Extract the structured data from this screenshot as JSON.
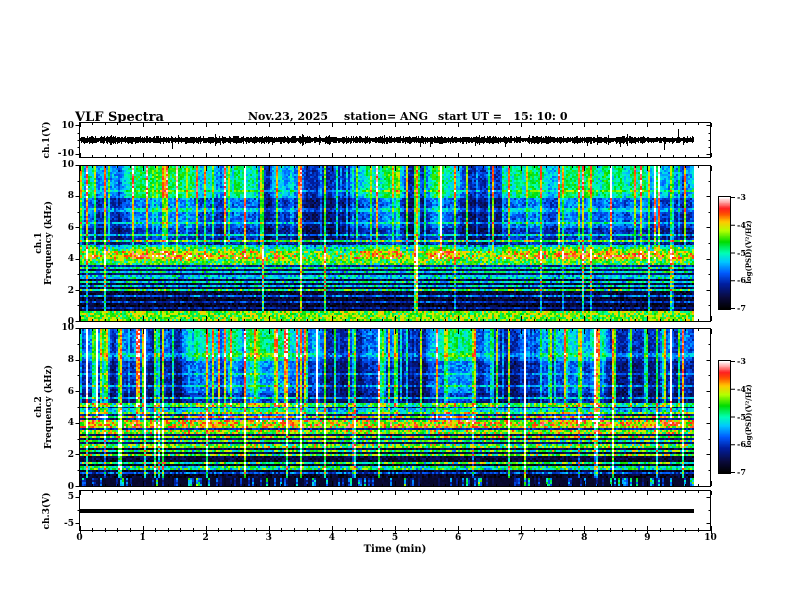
{
  "header": {
    "title": "VLF Spectra",
    "date": "Nov.23, 2025",
    "station": "station= ANG",
    "start_ut": "start UT =   15: 10: 0"
  },
  "chart_data": {
    "type": "heatmap",
    "title": "VLF Spectra",
    "date": "Nov.23, 2025",
    "station": "ANG",
    "start_ut": "15: 10: 0",
    "x_axis": {
      "label": "Time (min)",
      "range": [
        0,
        10
      ],
      "ticks": [
        "0",
        "1",
        "2",
        "3",
        "4",
        "5",
        "6",
        "7",
        "8",
        "9",
        "10"
      ],
      "minor_step_min": 0.2,
      "data_end_min": 9.73
    },
    "panels": [
      {
        "id": "ch1-voltage",
        "type": "waveform",
        "ylabel": "ch.1(V)",
        "yrange": [
          -12.5,
          12.5
        ],
        "ytick_values": [
          10,
          -10
        ],
        "ytick_labels": [
          "10",
          "-10"
        ],
        "minor_ytick_values": [
          5,
          0,
          -5
        ],
        "description": "continuous noise band centered at 0 V, ~±2 V, with sporadic impulse spikes",
        "spikes_min": [
          [
            1.47,
            -6.5
          ],
          [
            3.05,
            -3.5
          ],
          [
            5.4,
            -5.0
          ],
          [
            7.15,
            -3.0
          ],
          [
            9.27,
            -7.0
          ],
          [
            9.49,
            8.0
          ]
        ]
      },
      {
        "id": "ch1-spectrogram",
        "type": "spectrogram",
        "ylabel_lines": [
          "ch.1",
          "Frequency (kHz)"
        ],
        "yrange": [
          0,
          10
        ],
        "ytick_values": [
          10,
          8,
          6,
          4,
          2,
          0
        ],
        "ytick_labels": [
          "10",
          "8",
          "6",
          "4",
          "2",
          "0"
        ],
        "minor_ytick_values": [
          9,
          7,
          5,
          3,
          1
        ],
        "seed": 20250,
        "hot_streak_prob": 0.004,
        "bottom_band": "solid",
        "line_boost": 1.0,
        "bands": [
          {
            "f": [
              0,
              0.55
            ],
            "level": 0.56
          },
          {
            "f": [
              0.55,
              1.6
            ],
            "level": 0.05
          },
          {
            "f": [
              1.6,
              2.6
            ],
            "level": 0.07
          },
          {
            "f": [
              2.6,
              3.3
            ],
            "level": 0.12
          },
          {
            "f": [
              3.3,
              4.6
            ],
            "level": 0.2
          },
          {
            "f": [
              4.6,
              6.0
            ],
            "level": 0.17
          },
          {
            "f": [
              6.0,
              8.0
            ],
            "level": 0.24
          },
          {
            "f": [
              8.0,
              10.01
            ],
            "level": 0.38
          }
        ],
        "lines_khz": [
          [
            0.8,
            0.18
          ],
          [
            1.2,
            0.22
          ],
          [
            1.6,
            0.3
          ],
          [
            1.95,
            0.55
          ],
          [
            2.2,
            0.4
          ],
          [
            2.5,
            0.45
          ],
          [
            2.8,
            0.35
          ],
          [
            3.1,
            0.4
          ],
          [
            3.4,
            0.35
          ],
          [
            3.7,
            0.45
          ],
          [
            3.9,
            0.5
          ],
          [
            4.1,
            0.6
          ],
          [
            4.35,
            0.55
          ],
          [
            4.6,
            0.4
          ],
          [
            4.8,
            0.3
          ],
          [
            5.2,
            0.45
          ],
          [
            5.6,
            0.25
          ],
          [
            6.4,
            0.18
          ],
          [
            7.2,
            0.14
          ],
          [
            8.4,
            0.12
          ]
        ]
      },
      {
        "id": "ch2-spectrogram",
        "type": "spectrogram",
        "ylabel_lines": [
          "ch.2",
          "Frequency (kHz)"
        ],
        "yrange": [
          0,
          10
        ],
        "ytick_values": [
          10,
          8,
          6,
          4,
          2,
          0
        ],
        "ytick_labels": [
          "10",
          "8",
          "6",
          "4",
          "2",
          "0"
        ],
        "minor_ytick_values": [
          9,
          7,
          5,
          3,
          1
        ],
        "seed": 99177,
        "hot_streak_prob": 0.013,
        "bottom_band": "spiky",
        "line_boost": 1.35,
        "bands": [
          {
            "f": [
              0,
              0.5
            ],
            "level": 0.07
          },
          {
            "f": [
              0.5,
              1.6
            ],
            "level": 0.05
          },
          {
            "f": [
              1.6,
              2.6
            ],
            "level": 0.08
          },
          {
            "f": [
              2.6,
              3.3
            ],
            "level": 0.12
          },
          {
            "f": [
              3.3,
              4.6
            ],
            "level": 0.2
          },
          {
            "f": [
              4.6,
              6.0
            ],
            "level": 0.18
          },
          {
            "f": [
              6.0,
              8.0
            ],
            "level": 0.25
          },
          {
            "f": [
              8.0,
              10.01
            ],
            "level": 0.36
          }
        ],
        "lines_khz": [
          [
            0.8,
            0.2
          ],
          [
            1.1,
            0.4
          ],
          [
            1.45,
            0.45
          ],
          [
            1.95,
            0.55
          ],
          [
            2.2,
            0.42
          ],
          [
            2.5,
            0.48
          ],
          [
            2.8,
            0.4
          ],
          [
            3.1,
            0.45
          ],
          [
            3.4,
            0.4
          ],
          [
            3.7,
            0.48
          ],
          [
            3.9,
            0.5
          ],
          [
            4.1,
            0.58
          ],
          [
            4.35,
            0.55
          ],
          [
            4.6,
            0.4
          ],
          [
            4.8,
            0.3
          ],
          [
            5.2,
            0.45
          ],
          [
            5.6,
            0.25
          ],
          [
            6.4,
            0.18
          ],
          [
            7.2,
            0.14
          ],
          [
            8.4,
            0.12
          ]
        ]
      },
      {
        "id": "ch3-voltage",
        "type": "waveform",
        "ylabel": "ch.3(V)",
        "yrange": [
          -7.5,
          7.5
        ],
        "ytick_values": [
          5,
          -5
        ],
        "ytick_labels": [
          "5",
          "-5"
        ],
        "minor_ytick_values": [
          0
        ],
        "description": "flat (zero) signal drawn as a thick horizontal line",
        "flat_value": 0
      }
    ],
    "colorbars": [
      {
        "label": "log(PSD)(V²/Hz)",
        "range": [
          -3,
          -7
        ],
        "ticks": [
          "-3",
          "-4",
          "-5",
          "-6",
          "-7"
        ]
      },
      {
        "label": "log(PSD)(V²/Hz)",
        "range": [
          -3,
          -7
        ],
        "ticks": [
          "-3",
          "-4",
          "-5",
          "-6",
          "-7"
        ]
      }
    ],
    "palette_low_to_high": [
      [
        0.0,
        "#000000"
      ],
      [
        0.1,
        "#0a0a3c"
      ],
      [
        0.22,
        "#001ea0"
      ],
      [
        0.32,
        "#005aff"
      ],
      [
        0.42,
        "#00c8ff"
      ],
      [
        0.5,
        "#00ffb4"
      ],
      [
        0.6,
        "#00dc00"
      ],
      [
        0.7,
        "#b4ff00"
      ],
      [
        0.78,
        "#ffc800"
      ],
      [
        0.85,
        "#ff5000"
      ],
      [
        0.9,
        "#ff1e1e"
      ],
      [
        0.96,
        "#ffaaaa"
      ],
      [
        1.0,
        "#ffffff"
      ]
    ]
  }
}
